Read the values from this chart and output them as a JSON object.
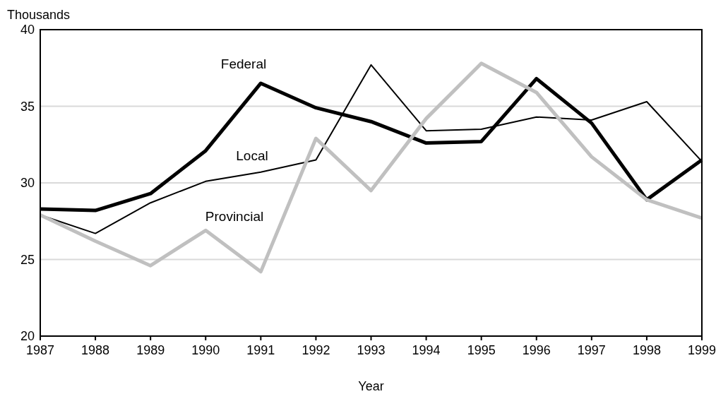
{
  "chart_data": {
    "type": "line",
    "ylabel": "Thousands",
    "xlabel": "Year",
    "x": [
      1987,
      1988,
      1989,
      1990,
      1991,
      1992,
      1993,
      1994,
      1995,
      1996,
      1997,
      1998,
      1999
    ],
    "xlim": [
      1987,
      1999
    ],
    "xticks": [
      1987,
      1988,
      1989,
      1990,
      1991,
      1992,
      1993,
      1994,
      1995,
      1996,
      1997,
      1998,
      1999
    ],
    "ylim": [
      20,
      40
    ],
    "yticks": [
      20,
      25,
      30,
      35,
      40
    ],
    "grid": "y",
    "marker": "none",
    "line_style": "solid",
    "series": [
      {
        "name": "Federal",
        "color": "#000000",
        "values": [
          28.3,
          28.2,
          29.3,
          32.1,
          36.5,
          34.9,
          34.0,
          32.6,
          32.7,
          36.8,
          33.9,
          28.9,
          31.5
        ]
      },
      {
        "name": "Local",
        "color": "#000000",
        "values": [
          27.9,
          26.7,
          28.7,
          30.1,
          30.7,
          31.5,
          37.7,
          33.4,
          33.5,
          34.3,
          34.1,
          35.3,
          31.4
        ]
      },
      {
        "name": "Provincial",
        "color": "#c0c0c0",
        "values": [
          27.9,
          26.2,
          24.6,
          26.9,
          24.2,
          32.9,
          29.5,
          34.2,
          37.8,
          35.9,
          31.7,
          28.9,
          27.7
        ]
      }
    ]
  }
}
